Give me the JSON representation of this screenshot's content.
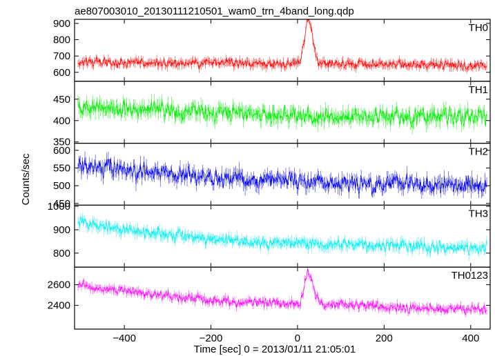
{
  "chart_data": {
    "type": "line",
    "title": "ae807003010_20130111210501_wam0_trn_4band_long.qdp",
    "xlabel": "Time [sec] 0 = 2013/01/11 21:05:01",
    "ylabel": "Counts/sec",
    "xlim": [
      -515,
      445
    ],
    "x_ticks": [
      -400,
      -200,
      0,
      200,
      400
    ],
    "x_tick_labels": [
      "−400",
      "−200",
      "0",
      "200",
      "400"
    ],
    "x_sampling": {
      "start": -507,
      "end": 437,
      "step": 1
    },
    "panels": [
      {
        "name": "TH0",
        "color": "#ff0000",
        "ylim": [
          545,
          925
        ],
        "y_ticks": [
          600,
          700,
          800,
          900
        ],
        "y_tick_labels": [
          "600",
          "700",
          "800",
          "900"
        ],
        "baseline": [
          [
            -507,
            665
          ],
          [
            -200,
            655
          ],
          [
            0,
            650
          ],
          [
            200,
            650
          ],
          [
            437,
            640
          ]
        ],
        "noise_amplitude": 30,
        "error_amplitude": 22,
        "burst": {
          "peak_time": 25,
          "rise_width": 12,
          "decay_width": 14,
          "peak_value": 920
        }
      },
      {
        "name": "TH1",
        "color": "#00ee00",
        "ylim": [
          347,
          492
        ],
        "y_ticks": [
          350,
          400,
          450
        ],
        "y_tick_labels": [
          "350",
          "400",
          "450"
        ],
        "baseline": [
          [
            -507,
            432
          ],
          [
            -200,
            418
          ],
          [
            0,
            412
          ],
          [
            200,
            410
          ],
          [
            437,
            410
          ]
        ],
        "noise_amplitude": 22,
        "error_amplitude": 14,
        "burst": null
      },
      {
        "name": "TH2",
        "color": "#0000ee",
        "ylim": [
          445,
          620
        ],
        "y_ticks": [
          450,
          500,
          550,
          600
        ],
        "y_tick_labels": [
          "450",
          "500",
          "550",
          "600"
        ],
        "baseline": [
          [
            -507,
            555
          ],
          [
            -200,
            520
          ],
          [
            0,
            510
          ],
          [
            200,
            505
          ],
          [
            437,
            500
          ]
        ],
        "noise_amplitude": 26,
        "error_amplitude": 16,
        "burst": null
      },
      {
        "name": "TH3",
        "color": "#00eeee",
        "ylim": [
          740,
          1005
        ],
        "y_ticks": [
          800,
          900,
          1000
        ],
        "y_tick_labels": [
          "800",
          "900",
          "1000"
        ],
        "baseline": [
          [
            -507,
            930
          ],
          [
            -400,
            900
          ],
          [
            -200,
            860
          ],
          [
            0,
            840
          ],
          [
            200,
            830
          ],
          [
            437,
            825
          ]
        ],
        "noise_amplitude": 28,
        "error_amplitude": 18,
        "burst": null
      },
      {
        "name": "TH0123",
        "color": "#ff00ff",
        "ylim": [
          2170,
          2770
        ],
        "y_ticks": [
          2400,
          2600
        ],
        "y_tick_labels": [
          "2400",
          "2600"
        ],
        "baseline": [
          [
            -507,
            2600
          ],
          [
            -400,
            2540
          ],
          [
            -200,
            2450
          ],
          [
            0,
            2410
          ],
          [
            200,
            2380
          ],
          [
            437,
            2360
          ]
        ],
        "noise_amplitude": 50,
        "error_amplitude": 32,
        "burst": {
          "peak_time": 25,
          "rise_width": 12,
          "decay_width": 16,
          "peak_value": 2720
        }
      }
    ]
  }
}
